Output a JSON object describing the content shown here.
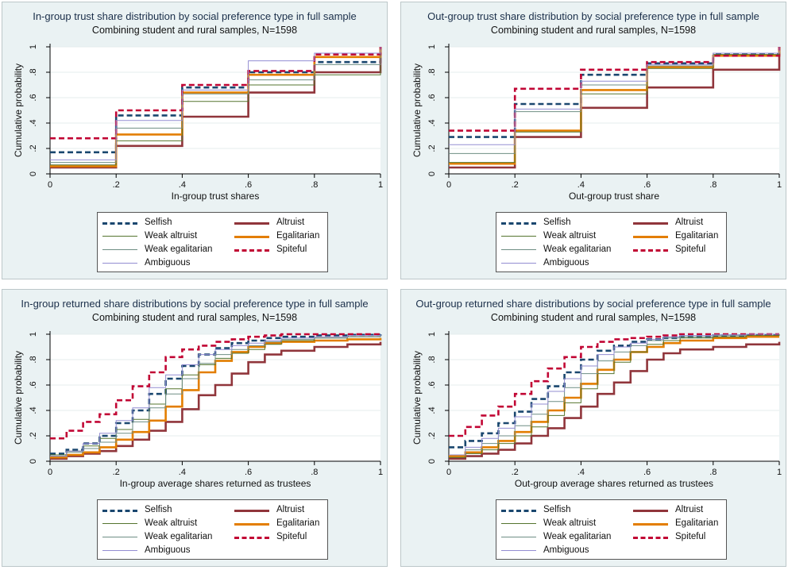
{
  "colors": {
    "Selfish": "#1a476f",
    "Altruist": "#90353b",
    "Weak altruist": "#55752f",
    "Egalitarian": "#e37e00",
    "Weak egalitarian": "#6e8e84",
    "Spiteful": "#c10534",
    "Ambiguous": "#938dd2"
  },
  "chart_data": [
    {
      "type": "line",
      "curve": "step",
      "title": "In-group trust share distribution by social preference type in full sample",
      "subtitle": "Combining student and rural samples, N=1598",
      "xlabel": "In-group trust shares",
      "ylabel": "Cumulative probability",
      "xlim": [
        0,
        1
      ],
      "ylim": [
        0,
        1
      ],
      "xticks": [
        "0",
        ".2",
        ".4",
        ".6",
        ".8",
        "1"
      ],
      "yticks": [
        "0",
        ".2",
        ".4",
        ".6",
        ".8",
        "1"
      ],
      "grid": true,
      "legend": [
        "Selfish",
        "Altruist",
        "Weak altruist",
        "Egalitarian",
        "Weak egalitarian",
        "Spiteful",
        "Ambiguous"
      ],
      "legend_position": "bottom",
      "x": [
        0,
        0.2,
        0.4,
        0.6,
        0.8,
        1
      ],
      "series": [
        {
          "name": "Selfish",
          "values": [
            0.17,
            0.46,
            0.68,
            0.8,
            0.88,
            1.0
          ]
        },
        {
          "name": "Altruist",
          "values": [
            0.05,
            0.22,
            0.45,
            0.64,
            0.8,
            1.0
          ]
        },
        {
          "name": "Weak altruist",
          "values": [
            0.07,
            0.26,
            0.57,
            0.7,
            0.78,
            1.0
          ]
        },
        {
          "name": "Egalitarian",
          "values": [
            0.06,
            0.31,
            0.64,
            0.78,
            0.92,
            1.0
          ]
        },
        {
          "name": "Weak egalitarian",
          "values": [
            0.09,
            0.36,
            0.63,
            0.74,
            0.86,
            1.0
          ]
        },
        {
          "name": "Spiteful",
          "values": [
            0.28,
            0.5,
            0.7,
            0.81,
            0.94,
            1.0
          ]
        },
        {
          "name": "Ambiguous",
          "values": [
            0.11,
            0.42,
            0.66,
            0.89,
            0.95,
            1.0
          ]
        }
      ]
    },
    {
      "type": "line",
      "curve": "step",
      "title": "Out-group trust share distribution by social preference type in full sample",
      "subtitle": "Combining student and rural samples, N=1598",
      "xlabel": "Out-group trust share",
      "ylabel": "Cumulative probability",
      "xlim": [
        0,
        1
      ],
      "ylim": [
        0,
        1
      ],
      "xticks": [
        "0",
        ".2",
        ".4",
        ".6",
        ".8",
        "1"
      ],
      "yticks": [
        "0",
        ".2",
        ".4",
        ".6",
        ".8",
        "1"
      ],
      "grid": true,
      "legend": [
        "Selfish",
        "Altruist",
        "Weak altruist",
        "Egalitarian",
        "Weak egalitarian",
        "Spiteful",
        "Ambiguous"
      ],
      "legend_position": "bottom",
      "x": [
        0,
        0.2,
        0.4,
        0.6,
        0.8,
        1
      ],
      "series": [
        {
          "name": "Selfish",
          "values": [
            0.29,
            0.55,
            0.78,
            0.87,
            0.94,
            1.0
          ]
        },
        {
          "name": "Altruist",
          "values": [
            0.05,
            0.29,
            0.52,
            0.68,
            0.82,
            1.0
          ]
        },
        {
          "name": "Weak altruist",
          "values": [
            0.09,
            0.33,
            0.63,
            0.83,
            0.94,
            1.0
          ]
        },
        {
          "name": "Egalitarian",
          "values": [
            0.08,
            0.34,
            0.66,
            0.84,
            0.93,
            1.0
          ]
        },
        {
          "name": "Weak egalitarian",
          "values": [
            0.16,
            0.49,
            0.7,
            0.85,
            0.95,
            1.0
          ]
        },
        {
          "name": "Spiteful",
          "values": [
            0.34,
            0.67,
            0.82,
            0.88,
            0.93,
            1.0
          ]
        },
        {
          "name": "Ambiguous",
          "values": [
            0.23,
            0.51,
            0.73,
            0.86,
            0.95,
            1.0
          ]
        }
      ]
    },
    {
      "type": "line",
      "curve": "step",
      "title": "In-group returned share distributions by social preference type in full sample",
      "subtitle": "Combining student and rural samples, N=1598",
      "xlabel": "In-group average shares returned as trustees",
      "ylabel": "Cumulative probability",
      "xlim": [
        0,
        1
      ],
      "ylim": [
        0,
        1
      ],
      "xticks": [
        "0",
        ".2",
        ".4",
        ".6",
        ".8",
        "1"
      ],
      "yticks": [
        "0",
        ".2",
        ".4",
        ".6",
        ".8",
        "1"
      ],
      "grid": true,
      "legend": [
        "Selfish",
        "Altruist",
        "Weak altruist",
        "Egalitarian",
        "Weak egalitarian",
        "Spiteful",
        "Ambiguous"
      ],
      "legend_position": "bottom",
      "x": [
        0,
        0.05,
        0.1,
        0.15,
        0.2,
        0.25,
        0.3,
        0.35,
        0.4,
        0.45,
        0.5,
        0.55,
        0.6,
        0.65,
        0.7,
        0.8,
        0.9,
        1.0
      ],
      "series": [
        {
          "name": "Selfish",
          "values": [
            0.06,
            0.09,
            0.14,
            0.2,
            0.3,
            0.4,
            0.53,
            0.65,
            0.75,
            0.84,
            0.89,
            0.93,
            0.95,
            0.97,
            0.98,
            0.99,
            0.995,
            1.0
          ]
        },
        {
          "name": "Altruist",
          "values": [
            0.02,
            0.04,
            0.06,
            0.08,
            0.12,
            0.17,
            0.24,
            0.31,
            0.41,
            0.52,
            0.6,
            0.69,
            0.78,
            0.84,
            0.87,
            0.9,
            0.92,
            0.94
          ]
        },
        {
          "name": "Weak altruist",
          "values": [
            0.05,
            0.08,
            0.12,
            0.18,
            0.25,
            0.33,
            0.45,
            0.57,
            0.68,
            0.76,
            0.81,
            0.85,
            0.88,
            0.92,
            0.95,
            0.97,
            0.98,
            0.99
          ]
        },
        {
          "name": "Egalitarian",
          "values": [
            0.03,
            0.05,
            0.07,
            0.11,
            0.17,
            0.23,
            0.32,
            0.43,
            0.56,
            0.7,
            0.79,
            0.86,
            0.9,
            0.93,
            0.94,
            0.95,
            0.96,
            0.97
          ]
        },
        {
          "name": "Weak egalitarian",
          "values": [
            0.04,
            0.07,
            0.1,
            0.15,
            0.22,
            0.31,
            0.42,
            0.53,
            0.65,
            0.77,
            0.84,
            0.88,
            0.91,
            0.94,
            0.96,
            0.97,
            0.98,
            0.99
          ]
        },
        {
          "name": "Spiteful",
          "values": [
            0.18,
            0.24,
            0.31,
            0.37,
            0.48,
            0.59,
            0.7,
            0.82,
            0.88,
            0.91,
            0.94,
            0.96,
            0.98,
            0.99,
            1.0,
            1.0,
            1.0,
            1.0
          ]
        },
        {
          "name": "Ambiguous",
          "values": [
            0.04,
            0.08,
            0.14,
            0.22,
            0.32,
            0.42,
            0.58,
            0.68,
            0.76,
            0.84,
            0.88,
            0.91,
            0.93,
            0.95,
            0.97,
            0.98,
            0.99,
            1.0
          ]
        }
      ]
    },
    {
      "type": "line",
      "curve": "step",
      "title": "Out-group returned share distributions by social preference type in full sample",
      "subtitle": "Combining student and rural samples, N=1598",
      "xlabel": "Out-group average shares returned as trustees",
      "ylabel": "Cumulative probability",
      "xlim": [
        0,
        1
      ],
      "ylim": [
        0,
        1
      ],
      "xticks": [
        "0",
        ".2",
        ".4",
        ".6",
        ".8",
        "1"
      ],
      "yticks": [
        "0",
        ".2",
        ".4",
        ".6",
        ".8",
        "1"
      ],
      "grid": true,
      "legend": [
        "Selfish",
        "Altruist",
        "Weak altruist",
        "Egalitarian",
        "Weak egalitarian",
        "Spiteful",
        "Ambiguous"
      ],
      "legend_position": "bottom",
      "x": [
        0,
        0.05,
        0.1,
        0.15,
        0.2,
        0.25,
        0.3,
        0.35,
        0.4,
        0.45,
        0.5,
        0.55,
        0.6,
        0.65,
        0.7,
        0.8,
        0.9,
        1.0
      ],
      "series": [
        {
          "name": "Selfish",
          "values": [
            0.11,
            0.16,
            0.22,
            0.3,
            0.39,
            0.49,
            0.59,
            0.7,
            0.8,
            0.87,
            0.91,
            0.94,
            0.96,
            0.97,
            0.98,
            0.99,
            0.995,
            1.0
          ]
        },
        {
          "name": "Altruist",
          "values": [
            0.02,
            0.04,
            0.06,
            0.09,
            0.14,
            0.2,
            0.26,
            0.34,
            0.43,
            0.53,
            0.62,
            0.71,
            0.8,
            0.85,
            0.88,
            0.9,
            0.92,
            0.94
          ]
        },
        {
          "name": "Weak altruist",
          "values": [
            0.03,
            0.06,
            0.09,
            0.14,
            0.2,
            0.27,
            0.36,
            0.46,
            0.57,
            0.69,
            0.78,
            0.86,
            0.92,
            0.95,
            0.97,
            0.98,
            0.99,
            1.0
          ]
        },
        {
          "name": "Egalitarian",
          "values": [
            0.04,
            0.07,
            0.11,
            0.16,
            0.23,
            0.31,
            0.4,
            0.5,
            0.61,
            0.72,
            0.8,
            0.86,
            0.9,
            0.93,
            0.95,
            0.97,
            0.98,
            0.98
          ]
        },
        {
          "name": "Weak egalitarian",
          "values": [
            0.05,
            0.09,
            0.14,
            0.2,
            0.28,
            0.37,
            0.47,
            0.58,
            0.69,
            0.79,
            0.86,
            0.91,
            0.95,
            0.97,
            0.98,
            0.99,
            1.0,
            1.0
          ]
        },
        {
          "name": "Spiteful",
          "values": [
            0.2,
            0.27,
            0.36,
            0.43,
            0.53,
            0.63,
            0.73,
            0.82,
            0.9,
            0.94,
            0.96,
            0.97,
            0.98,
            0.99,
            1.0,
            1.0,
            1.0,
            1.0
          ]
        },
        {
          "name": "Ambiguous",
          "values": [
            0.05,
            0.11,
            0.18,
            0.26,
            0.35,
            0.45,
            0.55,
            0.65,
            0.75,
            0.84,
            0.9,
            0.93,
            0.96,
            0.98,
            0.99,
            0.995,
            1.0,
            1.0
          ]
        }
      ]
    }
  ]
}
